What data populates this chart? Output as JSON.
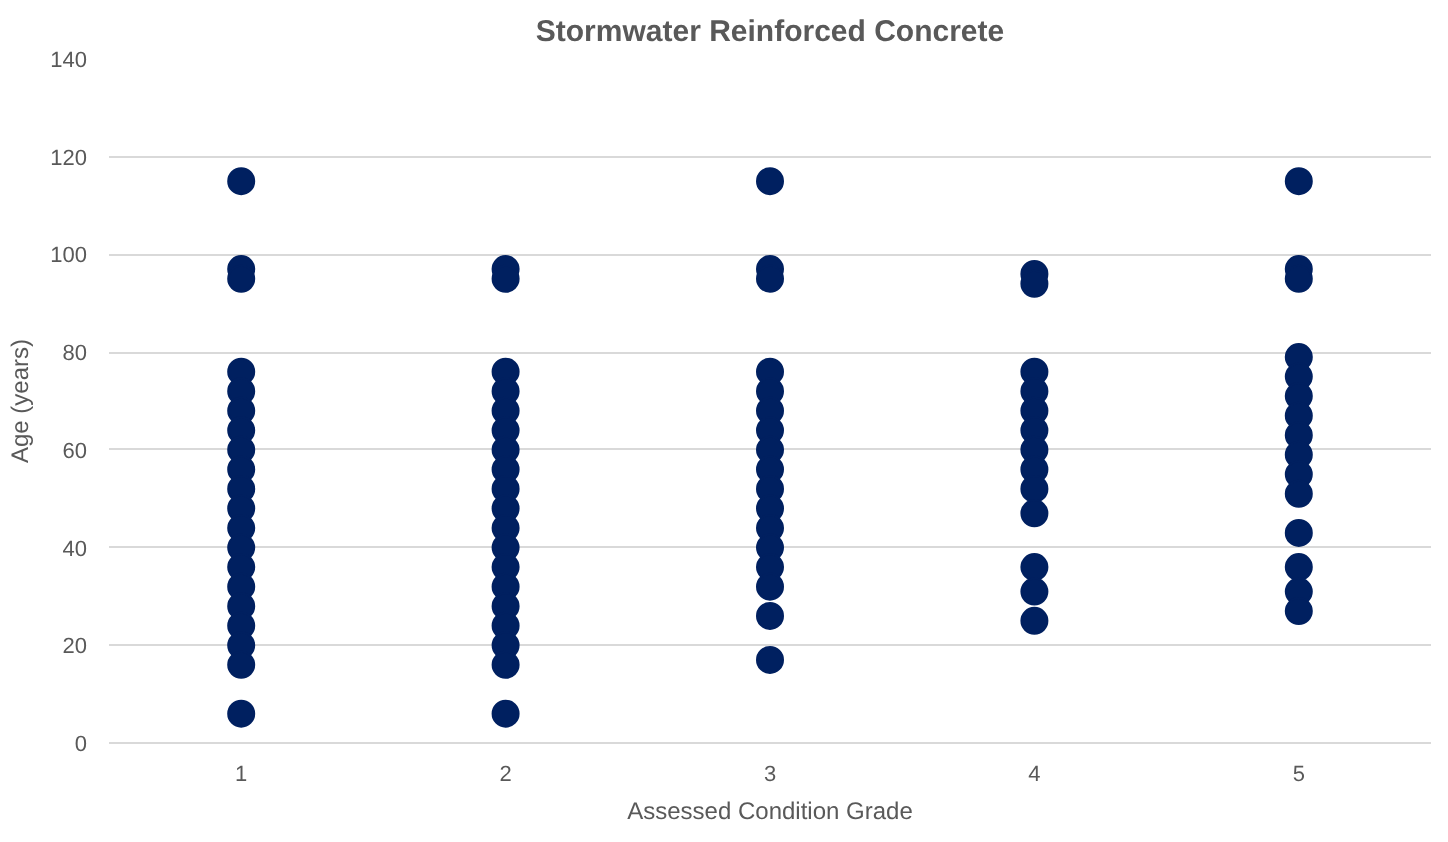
{
  "chart_data": {
    "type": "scatter",
    "title": "Stormwater Reinforced Concrete",
    "xlabel": "Assessed Condition Grade",
    "ylabel": "Age (years)",
    "x": [
      1,
      1,
      1,
      1,
      1,
      1,
      1,
      1,
      1,
      1,
      1,
      1,
      1,
      1,
      1,
      1,
      1,
      1,
      1,
      1,
      2,
      2,
      2,
      2,
      2,
      2,
      2,
      2,
      2,
      2,
      2,
      2,
      2,
      2,
      2,
      2,
      2,
      2,
      2,
      3,
      3,
      3,
      3,
      3,
      3,
      3,
      3,
      3,
      3,
      3,
      3,
      3,
      3,
      3,
      3,
      3,
      4,
      4,
      4,
      4,
      4,
      4,
      4,
      4,
      4,
      4,
      4,
      4,
      4,
      5,
      5,
      5,
      5,
      5,
      5,
      5,
      5,
      5,
      5,
      5,
      5,
      5,
      5,
      5
    ],
    "values": [
      115,
      97,
      95,
      76,
      72,
      68,
      64,
      60,
      56,
      52,
      48,
      44,
      40,
      36,
      32,
      28,
      24,
      20,
      16,
      6,
      97,
      95,
      76,
      72,
      68,
      64,
      60,
      56,
      52,
      48,
      44,
      40,
      36,
      32,
      28,
      24,
      20,
      16,
      6,
      115,
      97,
      95,
      76,
      72,
      68,
      64,
      60,
      56,
      52,
      48,
      44,
      40,
      36,
      32,
      26,
      17,
      96,
      94,
      76,
      72,
      68,
      64,
      60,
      56,
      52,
      47,
      36,
      31,
      25,
      115,
      97,
      95,
      79,
      75,
      71,
      67,
      63,
      59,
      55,
      51,
      43,
      36,
      31,
      27
    ],
    "color": "#002060",
    "marker": "circle",
    "xlim": [
      0.5,
      5.5
    ],
    "xticks": [
      1,
      2,
      3,
      4,
      5
    ],
    "ylim": [
      0,
      140
    ],
    "yticks": [
      0,
      20,
      40,
      60,
      80,
      100,
      120,
      140
    ],
    "grid": "y"
  }
}
